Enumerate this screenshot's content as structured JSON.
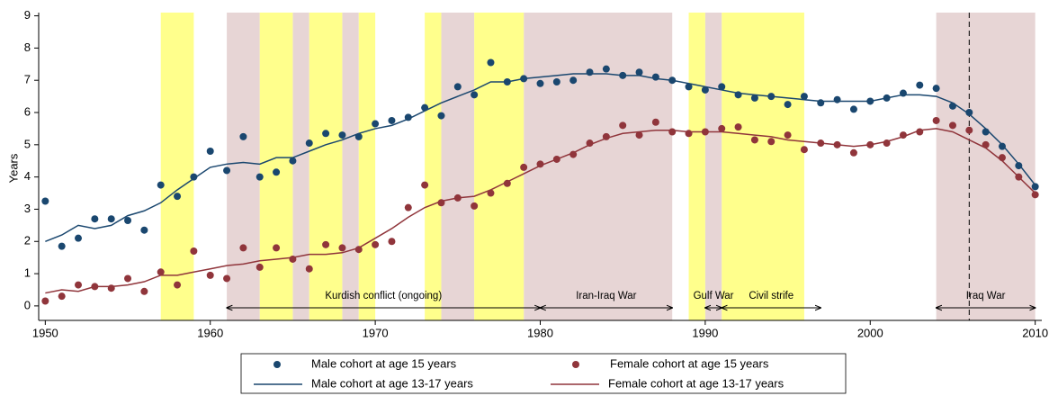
{
  "chart_data": {
    "type": "scatter",
    "y_label": "Years",
    "x": [
      1950,
      1951,
      1952,
      1953,
      1954,
      1955,
      1956,
      1957,
      1958,
      1959,
      1960,
      1961,
      1962,
      1963,
      1964,
      1965,
      1966,
      1967,
      1968,
      1969,
      1970,
      1971,
      1972,
      1973,
      1974,
      1975,
      1976,
      1977,
      1978,
      1979,
      1980,
      1981,
      1982,
      1983,
      1984,
      1985,
      1986,
      1987,
      1988,
      1989,
      1990,
      1991,
      1992,
      1993,
      1994,
      1995,
      1996,
      1997,
      1998,
      1999,
      2000,
      2001,
      2002,
      2003,
      2004,
      2005,
      2006,
      2007,
      2008,
      2009,
      2010
    ],
    "series": [
      {
        "name": "Male cohort at age 15 years",
        "style": "markers",
        "color": "#1a476f",
        "values": [
          3.25,
          1.85,
          2.1,
          2.7,
          2.7,
          2.65,
          2.35,
          3.75,
          3.4,
          4.0,
          4.8,
          4.2,
          5.25,
          4.0,
          4.15,
          4.5,
          5.05,
          5.35,
          5.3,
          5.25,
          5.65,
          5.75,
          5.85,
          6.15,
          5.9,
          6.8,
          6.55,
          7.55,
          6.95,
          7.05,
          6.9,
          6.95,
          7.0,
          7.25,
          7.35,
          7.15,
          7.25,
          7.1,
          7.0,
          6.8,
          6.7,
          6.8,
          6.55,
          6.45,
          6.5,
          6.25,
          6.5,
          6.3,
          6.4,
          6.1,
          6.35,
          6.45,
          6.6,
          6.85,
          6.75,
          6.2,
          6.0,
          5.4,
          4.95,
          4.35,
          3.7
        ]
      },
      {
        "name": "Female cohort at age 15 years",
        "style": "markers",
        "color": "#90353b",
        "values": [
          0.15,
          0.3,
          0.65,
          0.6,
          0.55,
          0.85,
          0.45,
          1.05,
          0.65,
          1.7,
          0.95,
          0.85,
          1.8,
          1.2,
          1.8,
          1.45,
          1.15,
          1.9,
          1.8,
          1.75,
          1.9,
          2.0,
          3.05,
          3.75,
          3.2,
          3.35,
          3.1,
          3.5,
          3.8,
          4.3,
          4.4,
          4.55,
          4.7,
          5.05,
          5.25,
          5.6,
          5.3,
          5.7,
          5.4,
          5.35,
          5.4,
          5.5,
          5.55,
          5.15,
          5.1,
          5.3,
          4.85,
          5.05,
          5.0,
          4.75,
          5.0,
          5.05,
          5.3,
          5.4,
          5.75,
          5.6,
          5.45,
          5.0,
          4.6,
          4.0,
          3.45
        ]
      },
      {
        "name": "Male cohort at age 13-17 years",
        "style": "line",
        "color": "#1a476f",
        "values": [
          2.0,
          2.2,
          2.5,
          2.4,
          2.5,
          2.8,
          2.95,
          3.2,
          3.6,
          3.95,
          4.3,
          4.4,
          4.45,
          4.4,
          4.6,
          4.6,
          4.8,
          5.0,
          5.15,
          5.35,
          5.5,
          5.6,
          5.8,
          6.05,
          6.3,
          6.5,
          6.7,
          6.95,
          6.95,
          7.05,
          7.1,
          7.15,
          7.2,
          7.2,
          7.2,
          7.15,
          7.15,
          7.05,
          7.0,
          6.9,
          6.8,
          6.7,
          6.6,
          6.55,
          6.5,
          6.45,
          6.4,
          6.35,
          6.35,
          6.35,
          6.35,
          6.45,
          6.55,
          6.55,
          6.5,
          6.3,
          5.95,
          5.5,
          5.0,
          4.4,
          3.75
        ]
      },
      {
        "name": "Female cohort at age 13-17 years",
        "style": "line",
        "color": "#90353b",
        "values": [
          0.4,
          0.5,
          0.45,
          0.6,
          0.6,
          0.65,
          0.75,
          0.95,
          0.95,
          1.05,
          1.15,
          1.25,
          1.3,
          1.4,
          1.45,
          1.5,
          1.6,
          1.6,
          1.65,
          1.8,
          2.1,
          2.4,
          2.75,
          3.05,
          3.25,
          3.35,
          3.4,
          3.6,
          3.85,
          4.1,
          4.35,
          4.55,
          4.75,
          5.0,
          5.2,
          5.35,
          5.4,
          5.45,
          5.45,
          5.4,
          5.4,
          5.4,
          5.35,
          5.3,
          5.25,
          5.15,
          5.1,
          5.05,
          5.0,
          4.95,
          5.0,
          5.1,
          5.25,
          5.45,
          5.5,
          5.4,
          5.15,
          4.9,
          4.5,
          4.0,
          3.5
        ]
      }
    ],
    "bands": [
      {
        "start": 1961,
        "end": 1963,
        "color": "#e7d5d5"
      },
      {
        "start": 1965,
        "end": 1966,
        "color": "#e7d5d5"
      },
      {
        "start": 1968,
        "end": 1969,
        "color": "#e7d5d5"
      },
      {
        "start": 1974,
        "end": 1976,
        "color": "#e7d5d5"
      },
      {
        "start": 1979,
        "end": 1988,
        "color": "#e7d5d5"
      },
      {
        "start": 1990,
        "end": 1991,
        "color": "#e7d5d5"
      },
      {
        "start": 2004,
        "end": 2010,
        "color": "#e7d5d5"
      },
      {
        "start": 1957,
        "end": 1959,
        "color": "#ffff8c"
      },
      {
        "start": 1963,
        "end": 1965,
        "color": "#ffff8c"
      },
      {
        "start": 1966,
        "end": 1968,
        "color": "#ffff8c"
      },
      {
        "start": 1969,
        "end": 1970,
        "color": "#ffff8c"
      },
      {
        "start": 1973,
        "end": 1974,
        "color": "#ffff8c"
      },
      {
        "start": 1976,
        "end": 1979,
        "color": "#ffff8c"
      },
      {
        "start": 1989,
        "end": 1990,
        "color": "#ffff8c"
      },
      {
        "start": 1991,
        "end": 1996,
        "color": "#ffff8c"
      }
    ],
    "annotations": [
      {
        "label": "Kurdish conflict (ongoing)",
        "start": 1961,
        "end": 1980
      },
      {
        "label": "Iran-Iraq War",
        "start": 1980,
        "end": 1988
      },
      {
        "label": "Gulf War",
        "start": 1990,
        "end": 1991
      },
      {
        "label": "Civil strife",
        "start": 1991,
        "end": 1997
      },
      {
        "label": "Iraq War",
        "start": 2004,
        "end": 2010
      }
    ],
    "vline": 2006,
    "xlim": [
      1949.6,
      2010.4
    ],
    "xticks": [
      1950,
      1960,
      1970,
      1980,
      1990,
      2000,
      2010
    ],
    "ylim": [
      -0.45,
      9.1
    ],
    "yticks": [
      0,
      1,
      2,
      3,
      4,
      5,
      6,
      7,
      8,
      9
    ]
  }
}
